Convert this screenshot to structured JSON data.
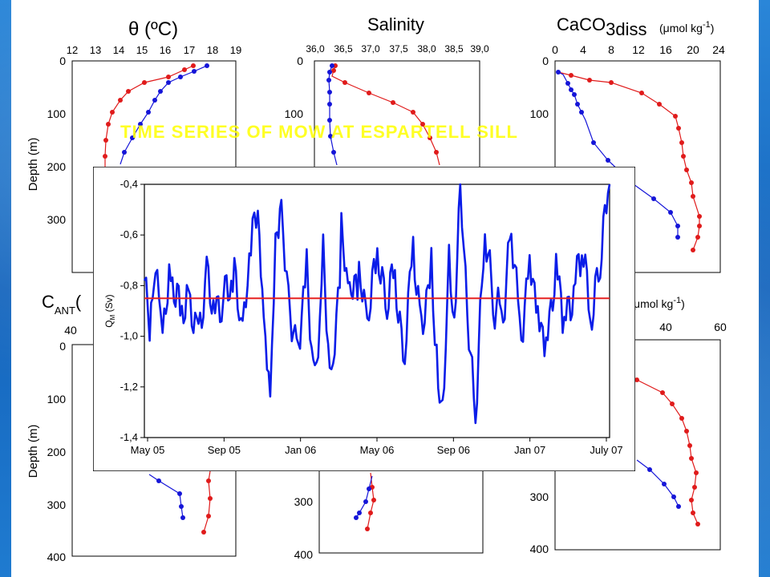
{
  "slide_title": "TIME SERIES OF MOW AT ESPARTELL SILL",
  "colors": {
    "red": "#e01b1b",
    "blue": "#1515d8",
    "inset_series": "#0b1de8",
    "mean_line": "#e52020",
    "title": "#ffff00"
  },
  "panels": {
    "theta": {
      "title": "θ (ºC)",
      "ylabel": "Depth (m)",
      "x_ticks": [
        "12",
        "13",
        "14",
        "15",
        "16",
        "17",
        "18",
        "19"
      ],
      "y_ticks": [
        "0",
        "100",
        "200",
        "300",
        "400"
      ]
    },
    "salinity": {
      "title": "Salinity",
      "x_ticks": [
        "36,0",
        "36,5",
        "37,0",
        "37,5",
        "38,0",
        "38,5",
        "39,0"
      ],
      "y_ticks": [
        "0",
        "100"
      ]
    },
    "caco3": {
      "title": "CaCO",
      "title_sub": "3diss",
      "title_units": "(μmol kg",
      "title_sup": "-1",
      "title_close": ")",
      "x_ticks": [
        "0",
        "4",
        "8",
        "12",
        "16",
        "20",
        "24"
      ],
      "y_ticks": [
        "0",
        "100"
      ]
    },
    "cant": {
      "title": "C",
      "title_sub": "ANT",
      "title_rest": "(",
      "ylabel": "Depth (m)",
      "x_ticks": [
        "40"
      ],
      "y_ticks": [
        "0",
        "100",
        "200",
        "300",
        "400"
      ]
    },
    "middle_bottom": {
      "y_ticks": [
        "300",
        "400"
      ]
    },
    "right_bottom": {
      "title_units": "μmol kg",
      "title_sup": "-1",
      "title_close": ")",
      "x_ticks": [
        "40",
        "60"
      ],
      "y_ticks": [
        "300",
        "400"
      ]
    }
  },
  "chart_data": {
    "type": "line",
    "title": "TIME SERIES OF MOW AT ESPARTELL SILL",
    "ylabel": "Q_M (Sv)",
    "ylim": [
      -1.4,
      -0.4
    ],
    "y_ticks": [
      "-0,4",
      "-0,6",
      "-0,8",
      "-1,0",
      "-1,2",
      "-1,4"
    ],
    "x_ticks": [
      "May 05",
      "Sep 05",
      "Jan 06",
      "May 06",
      "Sep 06",
      "Jan 07",
      "July 07"
    ],
    "xlim": [
      "2005-05-01",
      "2007-07-01"
    ],
    "mean_line": -0.85,
    "series": [
      {
        "x": [
          "2005-05-01",
          "2005-05-10",
          "2005-05-20",
          "2005-06-01",
          "2005-06-15",
          "2005-07-01",
          "2005-07-15",
          "2005-08-01",
          "2005-08-15",
          "2005-09-01",
          "2005-09-15",
          "2005-10-01",
          "2005-10-15",
          "2005-11-01",
          "2005-11-10",
          "2005-11-20",
          "2005-12-01",
          "2005-12-10",
          "2005-12-20",
          "2006-01-01",
          "2006-01-15",
          "2006-02-01",
          "2006-02-15",
          "2006-03-01",
          "2006-03-15",
          "2006-04-01",
          "2006-04-15",
          "2006-05-01",
          "2006-05-15",
          "2006-06-01",
          "2006-06-15",
          "2006-07-01",
          "2006-07-15",
          "2006-08-01",
          "2006-08-15",
          "2006-09-01",
          "2006-09-10",
          "2006-09-20",
          "2006-10-01",
          "2006-10-10",
          "2006-10-20",
          "2006-11-01",
          "2006-11-15",
          "2006-12-01",
          "2006-12-15",
          "2007-01-01",
          "2007-01-15",
          "2007-02-01",
          "2007-02-15",
          "2007-03-01",
          "2007-03-15",
          "2007-04-01",
          "2007-04-15",
          "2007-05-01",
          "2007-05-15",
          "2007-06-01",
          "2007-06-15",
          "2007-07-01"
        ],
        "y": [
          -0.78,
          -1.0,
          -0.72,
          -0.95,
          -0.75,
          -0.9,
          -0.82,
          -0.98,
          -0.74,
          -0.92,
          -0.85,
          -0.78,
          -1.02,
          -0.6,
          -0.55,
          -0.95,
          -1.25,
          -0.6,
          -0.47,
          -0.82,
          -1.05,
          -0.72,
          -1.2,
          -0.7,
          -1.24,
          -0.62,
          -0.88,
          -0.78,
          -0.98,
          -0.68,
          -0.9,
          -0.74,
          -1.1,
          -0.62,
          -0.95,
          -0.7,
          -1.1,
          -1.33,
          -0.72,
          -1.0,
          -0.43,
          -0.95,
          -1.35,
          -0.58,
          -0.88,
          -0.9,
          -0.55,
          -0.98,
          -0.66,
          -0.88,
          -1.02,
          -0.7,
          -0.95,
          -0.82,
          -0.68,
          -0.95,
          -0.72,
          -0.4
        ]
      }
    ]
  }
}
